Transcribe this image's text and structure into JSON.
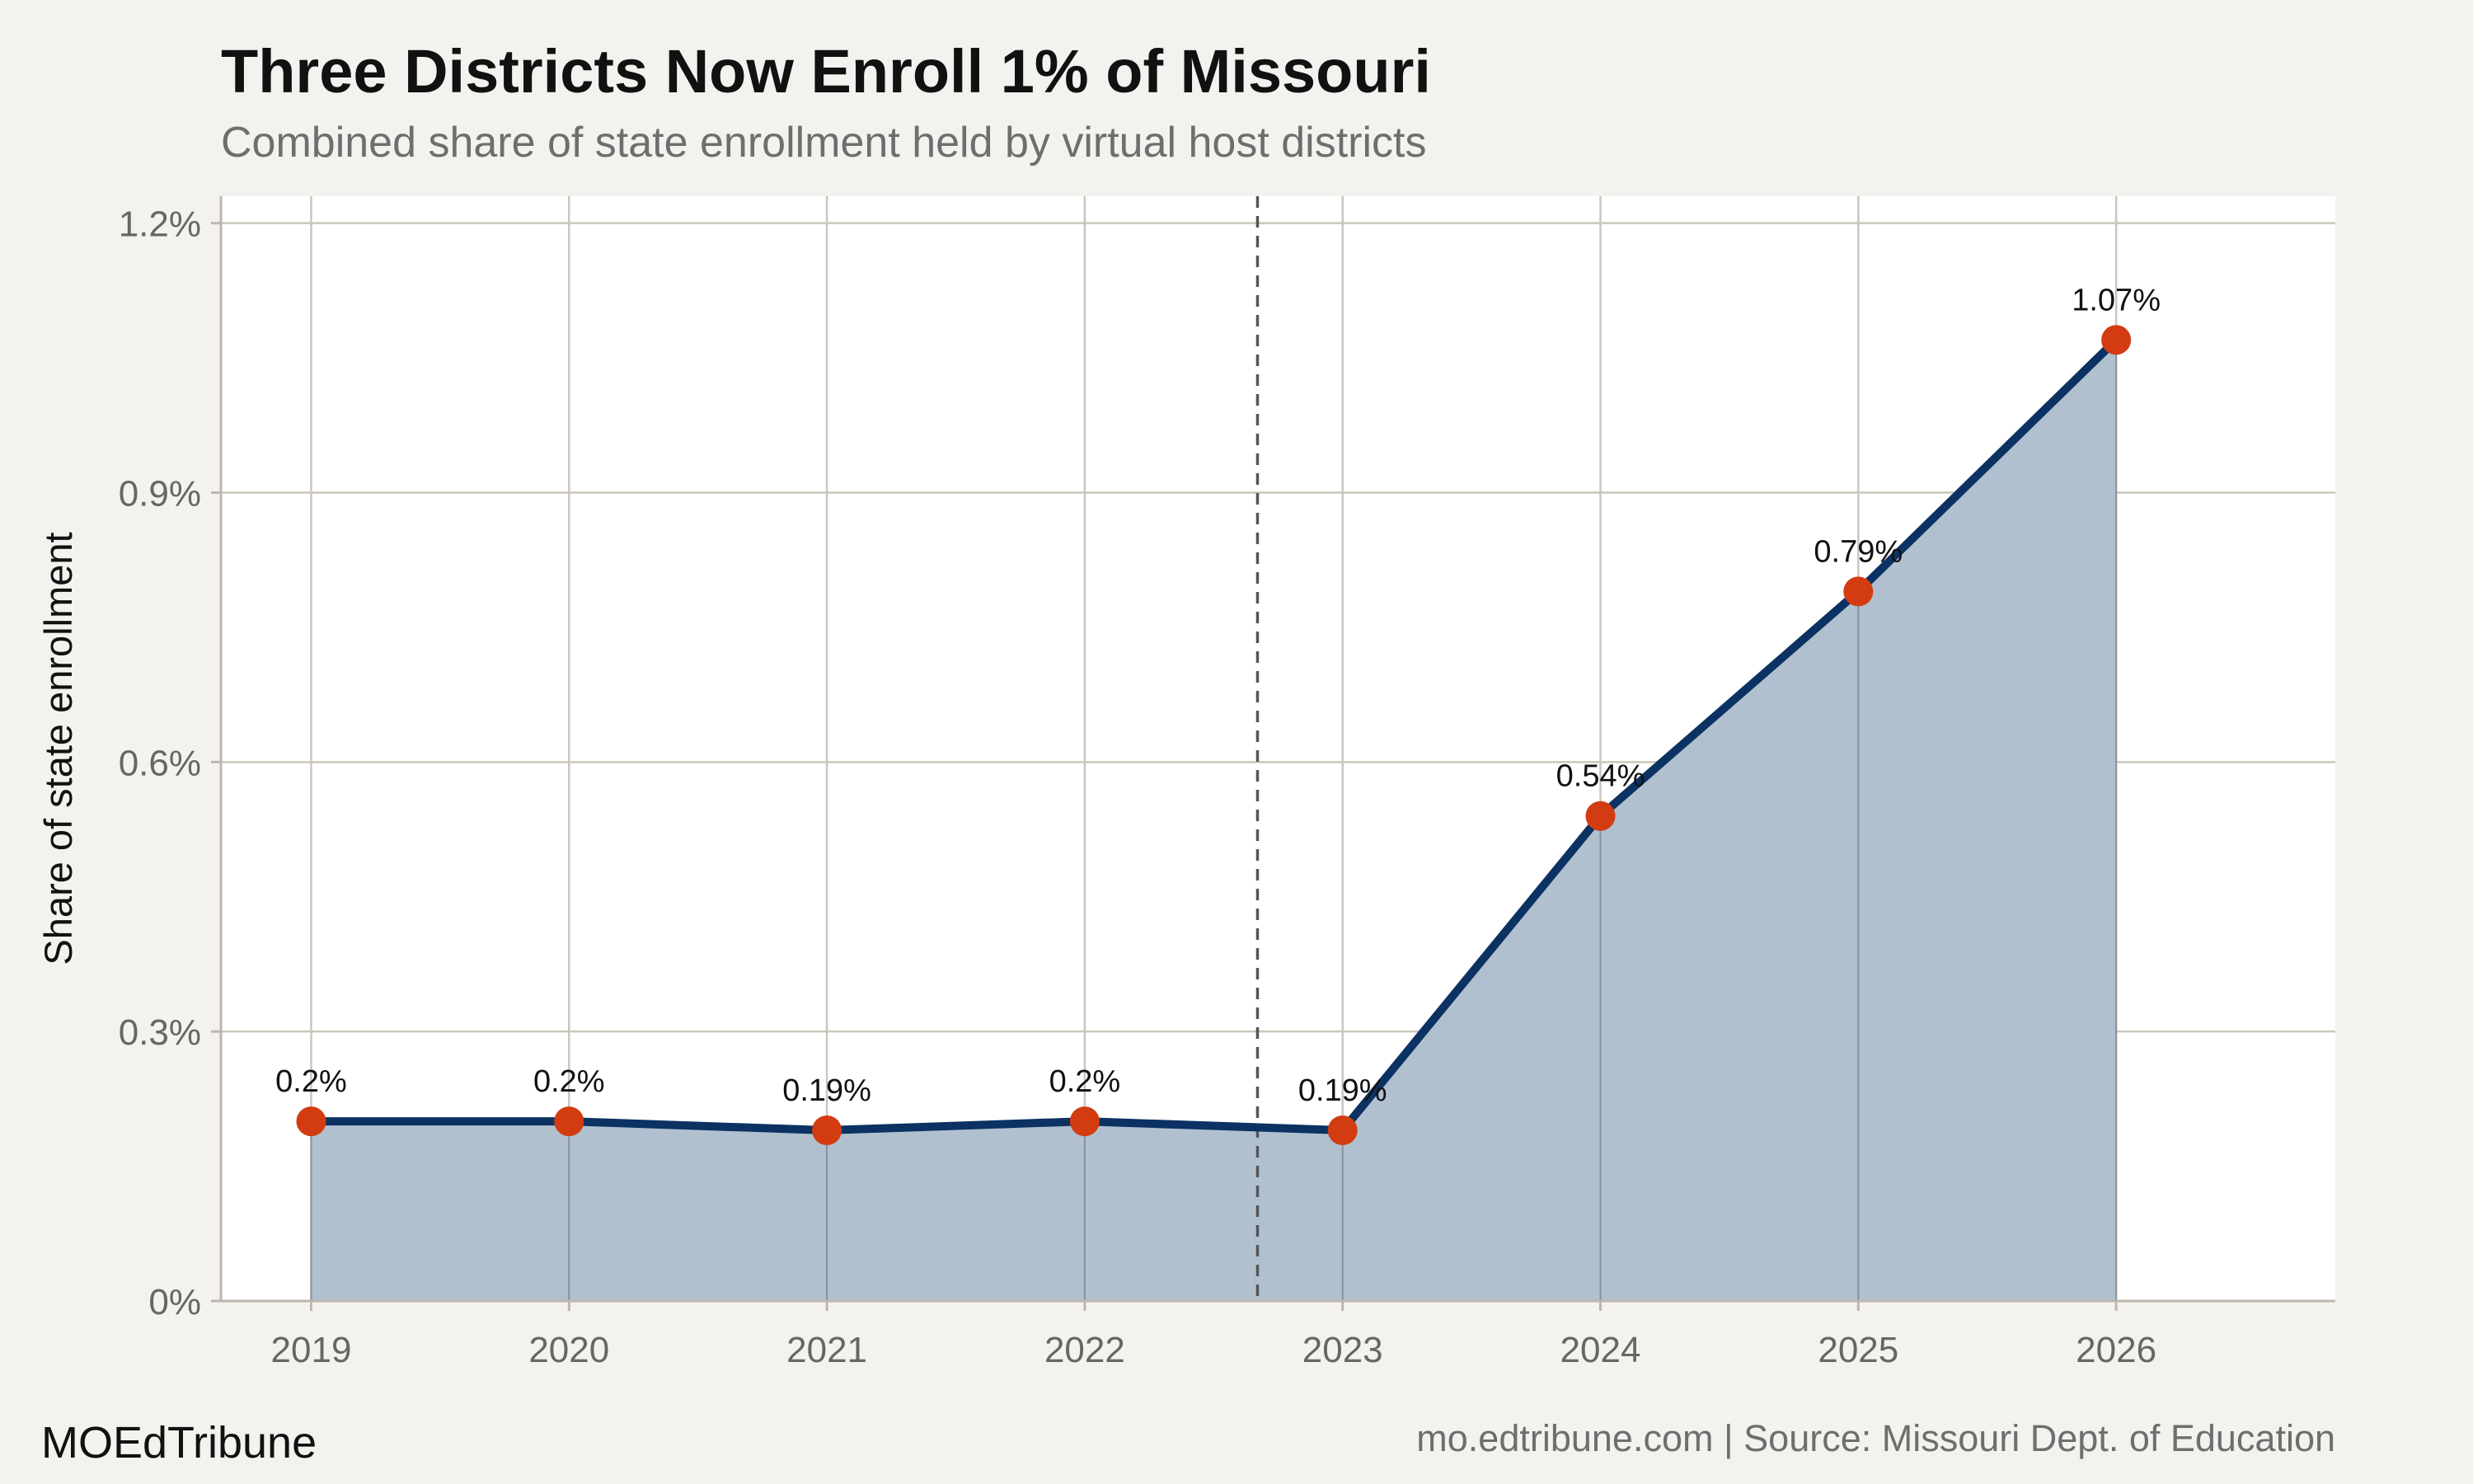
{
  "chart_data": {
    "type": "area",
    "title": "Three Districts Now Enroll 1% of Missouri",
    "subtitle": "Combined share of state enrollment held by virtual host districts",
    "ylabel": "Share of state enrollment",
    "xlabel": "",
    "x": [
      2019,
      2020,
      2021,
      2022,
      2023,
      2024,
      2025,
      2026
    ],
    "values": [
      0.2,
      0.2,
      0.19,
      0.2,
      0.19,
      0.54,
      0.79,
      1.07
    ],
    "data_labels": [
      "0.2%",
      "0.2%",
      "0.19%",
      "0.2%",
      "0.19%",
      "0.54%",
      "0.79%",
      "1.07%"
    ],
    "x_ticks": [
      "2019",
      "2020",
      "2021",
      "2022",
      "2023",
      "2024",
      "2025",
      "2026"
    ],
    "y_ticks": [
      0,
      0.3,
      0.6,
      0.9,
      1.2
    ],
    "y_tick_labels": [
      "0%",
      "0.3%",
      "0.6%",
      "0.9%",
      "1.2%"
    ],
    "xlim": [
      2018.65,
      2026.85
    ],
    "ylim": [
      0,
      1.23
    ],
    "reference_line_x": 2022.67,
    "grid": true,
    "colors": {
      "line": "#0b3262",
      "area": "#b0c0cf",
      "points": "#d23c10",
      "reference_line": "#555555"
    }
  },
  "footer": {
    "brand": "MOEdTribune",
    "source": "mo.edtribune.com | Source: Missouri Dept. of Education"
  }
}
